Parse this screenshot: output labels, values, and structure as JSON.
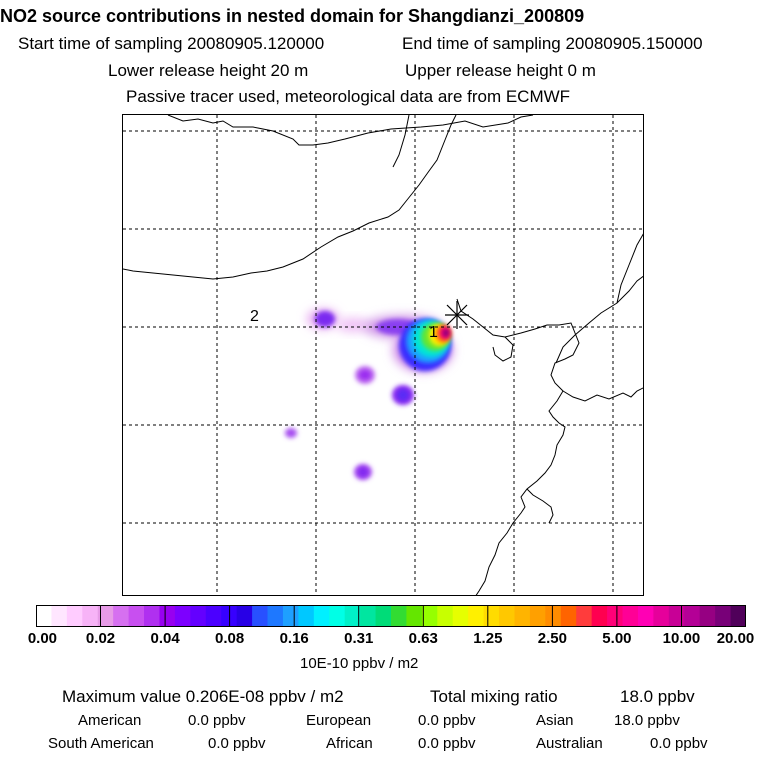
{
  "header": {
    "title": "NO2 source contributions in nested domain for Shangdianzi_200809",
    "start_label": "Start time of sampling 20080905.120000",
    "end_label": "End time of sampling 20080905.150000",
    "lower_label": "Lower release height   20 m",
    "upper_label": "Upper release height    0 m",
    "tracer_label": "Passive tracer used, meteorological data are from ECMWF"
  },
  "map": {
    "marker_1": "1",
    "marker_2": "2"
  },
  "colorbar": {
    "ticks": [
      "0.00",
      "0.02",
      "0.04",
      "0.08",
      "0.16",
      "0.31",
      "0.63",
      "1.25",
      "2.50",
      "5.00",
      "10.00",
      "20.00"
    ],
    "unit": "10E-10 ppbv / m2",
    "colors": [
      "#ffffff",
      "#ffe6ff",
      "#ffccff",
      "#f7b3f7",
      "#e79be7",
      "#d670f0",
      "#c84ff0",
      "#b030f0",
      "#9800f0",
      "#7d00ff",
      "#6400ff",
      "#4b00ff",
      "#3700ff",
      "#2800e6",
      "#2850ff",
      "#1e78ff",
      "#1ea0ff",
      "#00c8ff",
      "#00f0ff",
      "#00ffe6",
      "#00f0c8",
      "#00e6a0",
      "#00dc78",
      "#32dc32",
      "#64e600",
      "#96ff00",
      "#c8ff00",
      "#e6ff00",
      "#fff000",
      "#ffdc00",
      "#ffc800",
      "#ffb400",
      "#ffa000",
      "#ff8c00",
      "#ff6400",
      "#ff3c3c",
      "#ff0050",
      "#ff0078",
      "#ff0096",
      "#ff00b4",
      "#e6009b",
      "#c80096",
      "#b40096",
      "#960082",
      "#780078",
      "#50005a"
    ]
  },
  "summary": {
    "max_label": "Maximum value  0.206E-08 ppbv / m2",
    "total_label": "Total mixing ratio",
    "total_value": "18.0 ppbv",
    "american_label": "American",
    "american_value": "0.0 ppbv",
    "european_label": "European",
    "european_value": "0.0 ppbv",
    "asian_label": "Asian",
    "asian_value": "18.0 ppbv",
    "south_american_label": "South American",
    "south_american_value": "0.0 ppbv",
    "african_label": "African",
    "african_value": "0.0 ppbv",
    "australian_label": "Australian",
    "australian_value": "0.0 ppbv"
  }
}
